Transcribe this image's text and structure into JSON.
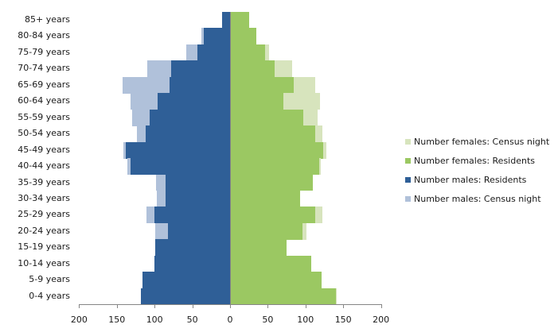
{
  "chart_data": {
    "type": "bar",
    "orientation": "horizontal",
    "subtype": "population-pyramid",
    "title": "",
    "xlabel": "",
    "ylabel": "",
    "xlim": [
      -200,
      200
    ],
    "x_ticks": [
      200,
      150,
      100,
      50,
      0,
      50,
      100,
      150,
      200
    ],
    "categories": [
      "85+ years",
      "80-84 years",
      "75-79 years",
      "70-74 years",
      "65-69 years",
      "60-64 years",
      "55-59 years",
      "50-54 years",
      "45-49 years",
      "40-44 years",
      "35-39 years",
      "30-34 years",
      "25-29 years",
      "20-24 years",
      "15-19 years",
      "10-14 years",
      "5-9 years",
      "0-4 years"
    ],
    "series": [
      {
        "name": "Number females: Census night",
        "color": "#d7e4bd",
        "side": "right",
        "values": [
          24,
          34,
          51,
          81,
          112,
          118,
          115,
          121,
          127,
          119,
          109,
          92,
          121,
          100,
          74,
          107,
          120,
          140
        ]
      },
      {
        "name": "Number females: Residents",
        "color": "#9bc862",
        "side": "right",
        "values": [
          24,
          34,
          45,
          58,
          83,
          70,
          96,
          112,
          122,
          117,
          109,
          92,
          112,
          95,
          74,
          107,
          120,
          139
        ]
      },
      {
        "name": "Number males: Residents",
        "color": "#2f5f97",
        "side": "left",
        "values": [
          11,
          35,
          43,
          78,
          80,
          96,
          107,
          112,
          138,
          132,
          85,
          85,
          100,
          82,
          99,
          100,
          116,
          118
        ]
      },
      {
        "name": "Number males: Census night",
        "color": "#b0c1da",
        "side": "left",
        "values": [
          11,
          38,
          58,
          110,
          142,
          132,
          130,
          123,
          141,
          136,
          98,
          97,
          111,
          99,
          99,
          100,
          116,
          118
        ]
      }
    ],
    "grid": false,
    "legend_position": "right"
  },
  "legend": [
    {
      "label": "Number females: Census night",
      "color": "#d7e4bd"
    },
    {
      "label": "Number females: Residents",
      "color": "#9bc862"
    },
    {
      "label": "Number males: Residents",
      "color": "#2f5f97"
    },
    {
      "label": "Number males: Census night",
      "color": "#b0c1da"
    }
  ]
}
